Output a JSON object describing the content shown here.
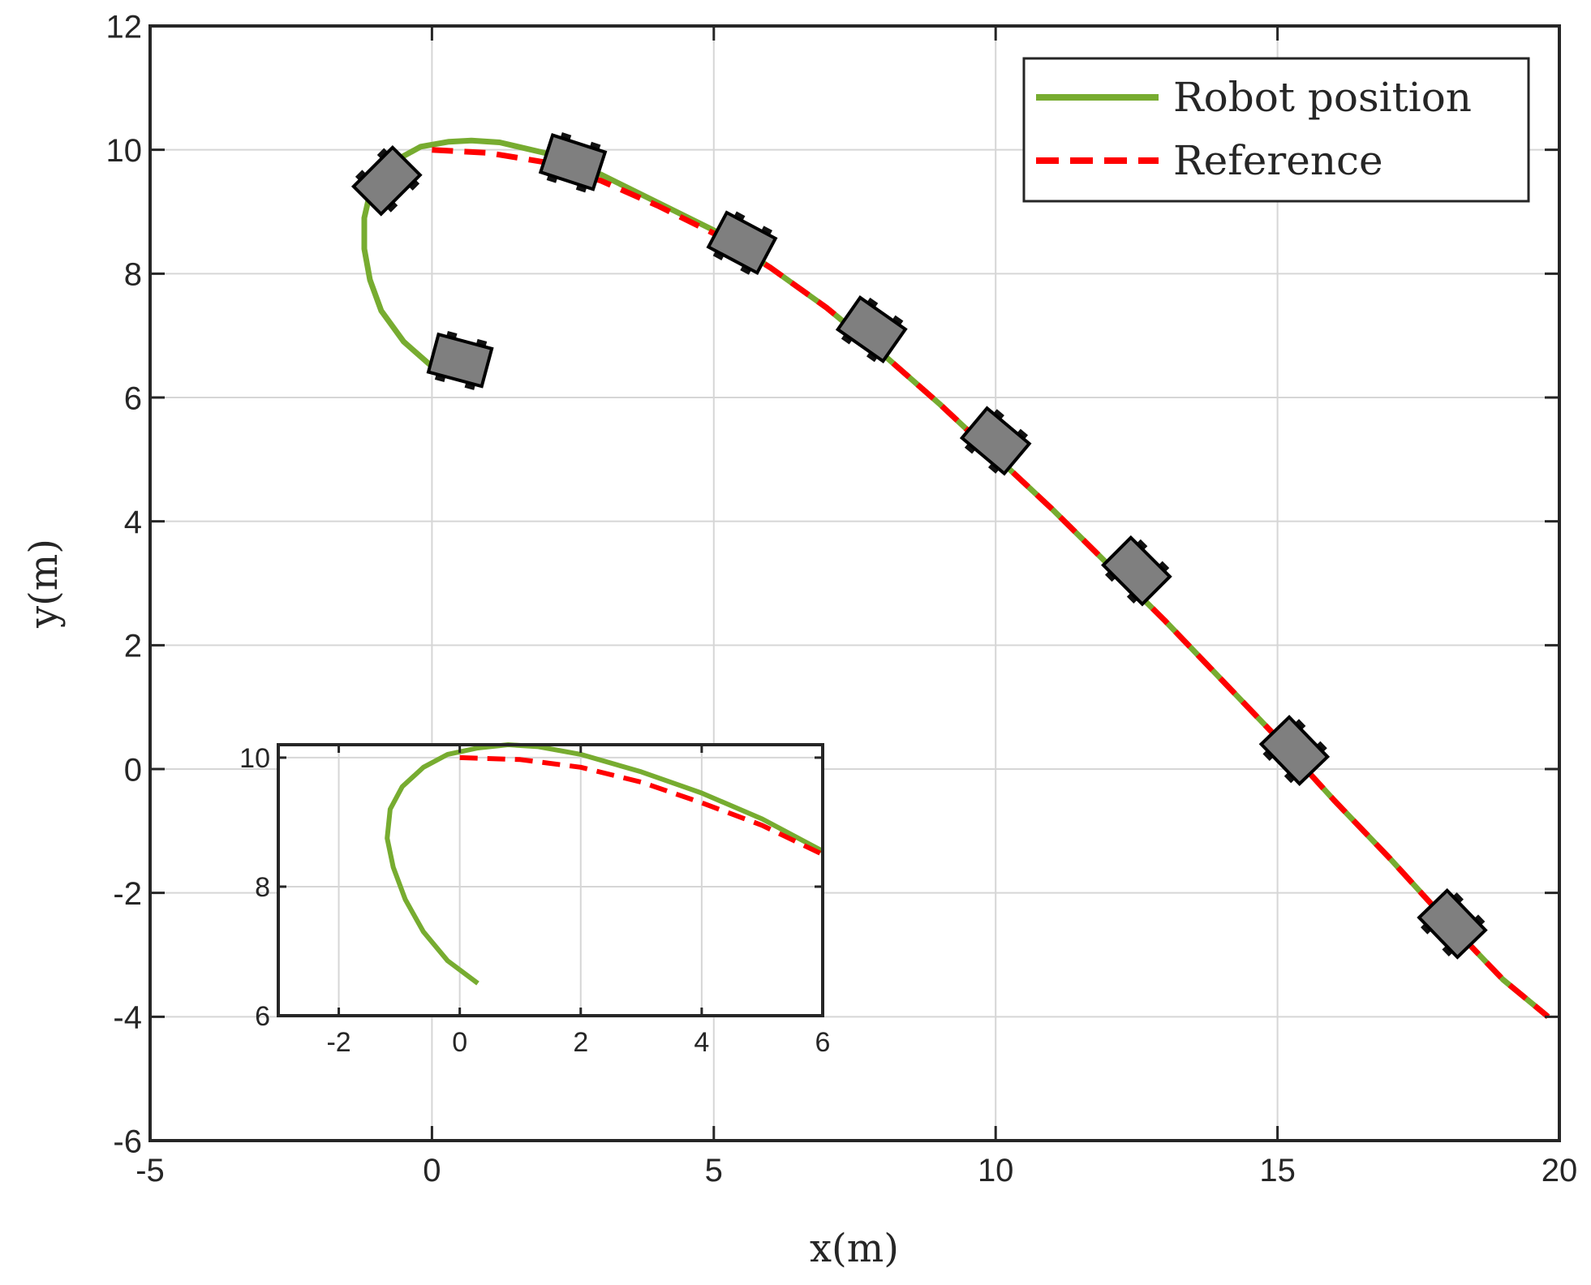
{
  "chart_data": [
    {
      "type": "line",
      "xlabel": "x(m)",
      "ylabel": "y(m)",
      "xlim": [
        -5,
        20
      ],
      "ylim": [
        -6,
        12
      ],
      "xticks": [
        -5,
        0,
        5,
        10,
        15,
        20
      ],
      "yticks": [
        -6,
        -4,
        -2,
        0,
        2,
        4,
        6,
        8,
        10,
        12
      ],
      "xtick_labels": [
        "-5",
        "0",
        "5",
        "10",
        "15",
        "20"
      ],
      "ytick_labels": [
        "-6",
        "-4",
        "-2",
        "0",
        "2",
        "4",
        "6",
        "8",
        "10",
        "12"
      ],
      "grid": true,
      "legend_position": "top-right",
      "series": [
        {
          "name": "Robot position",
          "style": "solid",
          "color": "#77ac30",
          "x": [
            0.0,
            -0.5,
            -0.9,
            -1.1,
            -1.2,
            -1.2,
            -1.1,
            -0.9,
            -0.6,
            -0.2,
            0.3,
            0.7,
            1.2,
            2.0,
            3.0,
            4.0,
            5.0,
            6.0,
            7.0,
            8.0,
            9.0,
            10.0,
            11.0,
            12.0,
            13.0,
            14.0,
            15.0,
            16.0,
            17.0,
            18.0,
            19.0,
            19.8
          ],
          "y": [
            6.5,
            6.9,
            7.4,
            7.9,
            8.4,
            8.9,
            9.3,
            9.6,
            9.85,
            10.05,
            10.13,
            10.15,
            10.12,
            9.95,
            9.6,
            9.15,
            8.7,
            8.1,
            7.45,
            6.7,
            5.9,
            5.05,
            4.2,
            3.3,
            2.4,
            1.45,
            0.5,
            -0.5,
            -1.45,
            -2.45,
            -3.4,
            -4.0
          ]
        },
        {
          "name": "Reference",
          "style": "dashed",
          "color": "#ff0000",
          "x": [
            0.0,
            1.0,
            2.0,
            3.0,
            4.0,
            5.0,
            6.0,
            7.0,
            8.0,
            9.0,
            10.0,
            11.0,
            12.0,
            13.0,
            14.0,
            15.0,
            16.0,
            17.0,
            18.0,
            19.0,
            19.8
          ],
          "y": [
            10.0,
            9.95,
            9.8,
            9.5,
            9.1,
            8.65,
            8.1,
            7.45,
            6.7,
            5.9,
            5.05,
            4.2,
            3.3,
            2.4,
            1.45,
            0.5,
            -0.5,
            -1.45,
            -2.45,
            -3.4,
            -4.0
          ]
        }
      ],
      "robots": [
        {
          "x": 0.5,
          "y": 6.6,
          "heading_deg": -15
        },
        {
          "x": -0.8,
          "y": 9.5,
          "heading_deg": 45
        },
        {
          "x": 2.5,
          "y": 9.8,
          "heading_deg": -18
        },
        {
          "x": 5.5,
          "y": 8.5,
          "heading_deg": -28
        },
        {
          "x": 7.8,
          "y": 7.1,
          "heading_deg": -35
        },
        {
          "x": 10.0,
          "y": 5.3,
          "heading_deg": -40
        },
        {
          "x": 12.5,
          "y": 3.2,
          "heading_deg": -45
        },
        {
          "x": 15.3,
          "y": 0.3,
          "heading_deg": -46
        },
        {
          "x": 18.1,
          "y": -2.5,
          "heading_deg": -46
        }
      ]
    },
    {
      "type": "line",
      "xlim": [
        -3,
        6
      ],
      "ylim": [
        6,
        10.2
      ],
      "xticks": [
        -2,
        0,
        2,
        4,
        6
      ],
      "yticks": [
        6,
        8,
        10
      ],
      "xtick_labels": [
        "-2",
        "0",
        "2",
        "4",
        "6"
      ],
      "ytick_labels": [
        "6",
        "8",
        "10"
      ],
      "grid": true,
      "series": [
        {
          "style": "solid",
          "color": "#77ac30",
          "x": [
            0.3,
            -0.2,
            -0.6,
            -0.9,
            -1.1,
            -1.2,
            -1.15,
            -0.95,
            -0.6,
            -0.2,
            0.3,
            0.8,
            1.3,
            2.0,
            3.0,
            4.0,
            5.0,
            6.0
          ],
          "y": [
            6.5,
            6.85,
            7.3,
            7.8,
            8.3,
            8.75,
            9.2,
            9.55,
            9.85,
            10.05,
            10.15,
            10.2,
            10.17,
            10.05,
            9.78,
            9.45,
            9.05,
            8.55
          ]
        },
        {
          "style": "dashed",
          "color": "#ff0000",
          "x": [
            0.0,
            1.0,
            2.0,
            3.0,
            4.0,
            5.0,
            6.0
          ],
          "y": [
            10.0,
            9.97,
            9.85,
            9.62,
            9.3,
            8.95,
            8.5
          ]
        }
      ]
    }
  ]
}
